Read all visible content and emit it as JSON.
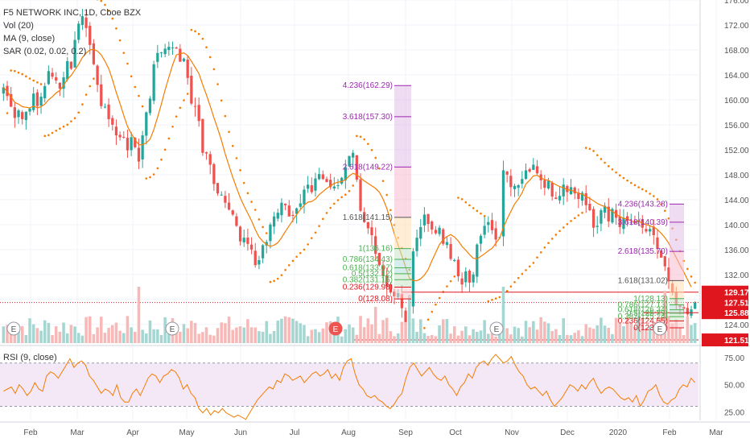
{
  "header": {
    "symbol": "F5 NETWORK INC, 1D, Cboe BZX",
    "vol": "Vol (20)",
    "ma": "MA (9, close)",
    "sar": "SAR (0.02, 0.02, 0.2)",
    "rsi": "RSI (9, close)"
  },
  "colors": {
    "up": "#26a69a",
    "down": "#ef5350",
    "ma": "#f57c00",
    "sar": "#f57c00",
    "rsi": "#f57c00",
    "fib_red": "#e0161e",
    "fib_purple": "#9c27b0",
    "fib_green": "#4caf50"
  },
  "chart_data": [
    {
      "type": "candlestick",
      "ylim": [
        121,
        176
      ],
      "y_ticks": [
        124,
        128,
        132,
        136,
        140,
        144,
        148,
        152,
        156,
        160,
        164,
        168,
        172,
        176
      ],
      "x_ticks": [
        "Feb",
        "Mar",
        "Apr",
        "May",
        "Jun",
        "Jul",
        "Aug",
        "Sep",
        "Oct",
        "Nov",
        "Dec",
        "2020",
        "Feb",
        "Mar"
      ],
      "price_labels": [
        "129.17",
        "127.51",
        "125.88",
        "121.51"
      ],
      "earnings_markers": [
        "E",
        "E",
        "E",
        "E",
        "E"
      ],
      "fib_left": [
        "4.236(162.29)",
        "3.618(157.30)",
        "2.618(149.22)",
        "1.618(141.15)",
        "1(136.16)",
        "0.786(134.43)",
        "0.618(133.07)",
        "0.5(132.12)",
        "0.382(131.16)",
        "0.236(129.98)",
        "0(128.08)"
      ],
      "fib_right": [
        "4.236(143.28)",
        "3.618(140.39)",
        "2.618(135.70)",
        "1.618(131.02)",
        "1(128.13)",
        "0.786(127.13)",
        "0.618(126.34)",
        "0.5(125.79)",
        "0.382(125.24)",
        "0.236(124.55)",
        "0(123.45)"
      ],
      "close": [
        162.0,
        160.6,
        158.9,
        157.1,
        158.3,
        156.9,
        158.1,
        158.6,
        161.0,
        159.0,
        160.5,
        162.2,
        164.6,
        163.7,
        163.1,
        161.8,
        163.6,
        166.2,
        165.0,
        169.6,
        172.2,
        173.4,
        171.5,
        168.8,
        165.7,
        162.4,
        159.0,
        158.9,
        156.9,
        156.0,
        154.3,
        154.0,
        154.0,
        151.9,
        154.0,
        152.4,
        150.1,
        154.3,
        158.0,
        160.2,
        165.7,
        167.5,
        167.6,
        168.2,
        168.5,
        168.4,
        168.2,
        166.1,
        166.6,
        163.5,
        159.4,
        158.9,
        156.6,
        151.5,
        151.4,
        149.6,
        146.5,
        145.0,
        144.8,
        143.5,
        142.4,
        141.6,
        139.8,
        137.3,
        137.9,
        136.9,
        136.0,
        133.5,
        134.3,
        136.7,
        137.2,
        140.0,
        141.3,
        141.9,
        143.5,
        143.1,
        141.3,
        141.5,
        142.6,
        143.4,
        145.6,
        146.4,
        145.2,
        147.4,
        148.1,
        147.3,
        146.8,
        146.0,
        146.1,
        146.3,
        147.5,
        149.2,
        151.0,
        151.5,
        147.2,
        142.2,
        140.4,
        139.4,
        138.3,
        135.3,
        133.5,
        131.8,
        130.1,
        129.1,
        128.5,
        129.0,
        126.6,
        124.3,
        127.1,
        135.7,
        137.9,
        139.6,
        141.6,
        140.1,
        139.2,
        138.6,
        139.5,
        136.9,
        137.2,
        134.5,
        134.3,
        131.7,
        130.4,
        132.5,
        130.7,
        132.0,
        136.8,
        138.2,
        139.8,
        140.4,
        139.1,
        137.6,
        138.0,
        148.7,
        148.0,
        146.0,
        146.2,
        146.3,
        147.3,
        148.7,
        148.5,
        149.6,
        148.2,
        147.1,
        145.9,
        147.0,
        144.5,
        144.1,
        144.6,
        146.4,
        145.2,
        146.0,
        145.0,
        144.1,
        145.1,
        143.1,
        142.3,
        139.5,
        139.8,
        142.3,
        143.0,
        140.5,
        142.5,
        141.1,
        139.6,
        141.1,
        140.6,
        140.4,
        140.2,
        140.6,
        139.5,
        138.9,
        139.3,
        138.3,
        136.1,
        134.7,
        133.3,
        130.9,
        129.1,
        127.2,
        126.8,
        126.5,
        125.6,
        126.4,
        127.5
      ],
      "ma9": [
        162.0,
        161.3,
        160.5,
        159.6,
        159.3,
        158.9,
        158.8,
        158.7,
        159.0,
        158.7,
        158.9,
        159.3,
        160.0,
        160.5,
        161.1,
        161.5,
        162.3,
        163.3,
        163.9,
        164.8,
        165.7,
        166.8,
        167.5,
        168.0,
        168.1,
        167.8,
        167.2,
        166.2,
        165.0,
        163.2,
        161.2,
        159.4,
        157.5,
        155.7,
        154.6,
        153.6,
        152.8,
        152.8,
        153.1,
        153.7,
        155.2,
        157.2,
        159.3,
        161.6,
        163.6,
        165.6,
        167.2,
        167.4,
        167.5,
        167.1,
        166.2,
        165.2,
        164.2,
        162.4,
        160.8,
        159.0,
        157.1,
        155.4,
        153.5,
        151.3,
        149.4,
        147.6,
        145.9,
        144.3,
        143.0,
        141.8,
        140.6,
        139.2,
        138.0,
        137.3,
        136.8,
        136.5,
        136.7,
        137.1,
        137.9,
        138.9,
        139.8,
        140.7,
        141.6,
        142.4,
        143.1,
        143.6,
        143.7,
        144.1,
        144.8,
        145.3,
        145.8,
        146.2,
        146.6,
        146.8,
        146.9,
        147.2,
        147.8,
        148.2,
        148.0,
        147.5,
        147.0,
        146.6,
        146.2,
        145.8,
        145.2,
        144.1,
        142.6,
        140.5,
        138.5,
        136.7,
        135.0,
        133.2,
        131.4,
        131.0,
        131.0,
        131.3,
        131.9,
        132.8,
        134.2,
        135.5,
        136.8,
        137.6,
        138.1,
        138.4,
        138.0,
        137.4,
        136.5,
        135.9,
        135.2,
        134.6,
        134.5,
        134.9,
        135.3,
        135.8,
        136.2,
        137.0,
        137.8,
        139.5,
        140.9,
        142.1,
        143.3,
        144.1,
        145.1,
        146.5,
        147.1,
        147.8,
        147.9,
        147.5,
        147.2,
        147.1,
        146.7,
        146.4,
        146.1,
        145.9,
        145.6,
        145.5,
        145.3,
        145.0,
        144.9,
        144.5,
        144.2,
        143.8,
        143.4,
        143.1,
        142.9,
        142.5,
        142.1,
        141.7,
        141.3,
        141.0,
        140.9,
        140.6,
        140.4,
        140.6,
        140.2,
        140.0,
        139.8,
        139.6,
        139.2,
        138.6,
        137.9,
        137.0,
        135.9,
        134.7,
        133.5,
        132.4,
        131.2,
        130.0
      ]
    },
    {
      "type": "line",
      "name": "RSI",
      "ylim": [
        17,
        84
      ],
      "y_ticks": [
        25.0,
        50.0,
        75.0
      ],
      "y_tick_labels": [
        "25.00",
        "50.00",
        "75.00"
      ],
      "band": [
        30,
        70
      ],
      "current_label": "",
      "values": [
        44,
        46,
        48,
        42,
        50,
        46,
        40,
        44,
        52,
        46,
        44,
        58,
        62,
        60,
        56,
        62,
        68,
        74,
        66,
        70,
        72,
        68,
        58,
        54,
        48,
        42,
        46,
        44,
        40,
        50,
        38,
        34,
        34,
        42,
        46,
        40,
        48,
        56,
        60,
        58,
        52,
        58,
        60,
        64,
        62,
        56,
        46,
        50,
        42,
        38,
        28,
        24,
        28,
        22,
        26,
        24,
        28,
        24,
        22,
        20,
        22,
        20,
        18,
        24,
        30,
        36,
        40,
        44,
        48,
        46,
        54,
        52,
        60,
        58,
        54,
        56,
        58,
        52,
        56,
        60,
        62,
        58,
        60,
        64,
        56,
        60,
        54,
        66,
        72,
        74,
        60,
        50,
        46,
        40,
        38,
        40,
        36,
        34,
        30,
        28,
        32,
        38,
        42,
        56,
        66,
        70,
        64,
        58,
        62,
        66,
        60,
        56,
        54,
        58,
        50,
        46,
        40,
        48,
        52,
        60,
        56,
        66,
        70,
        72,
        68,
        74,
        78,
        74,
        70,
        72,
        76,
        68,
        62,
        58,
        50,
        46,
        48,
        44,
        40,
        44,
        36,
        30,
        34,
        38,
        44,
        50,
        48,
        44,
        50,
        46,
        52,
        56,
        48,
        42,
        46,
        48,
        46,
        42,
        38,
        36,
        38,
        34,
        40,
        30,
        36,
        44,
        46,
        50,
        40,
        34,
        32,
        36,
        38,
        46,
        50,
        48,
        56,
        52
      ]
    }
  ]
}
